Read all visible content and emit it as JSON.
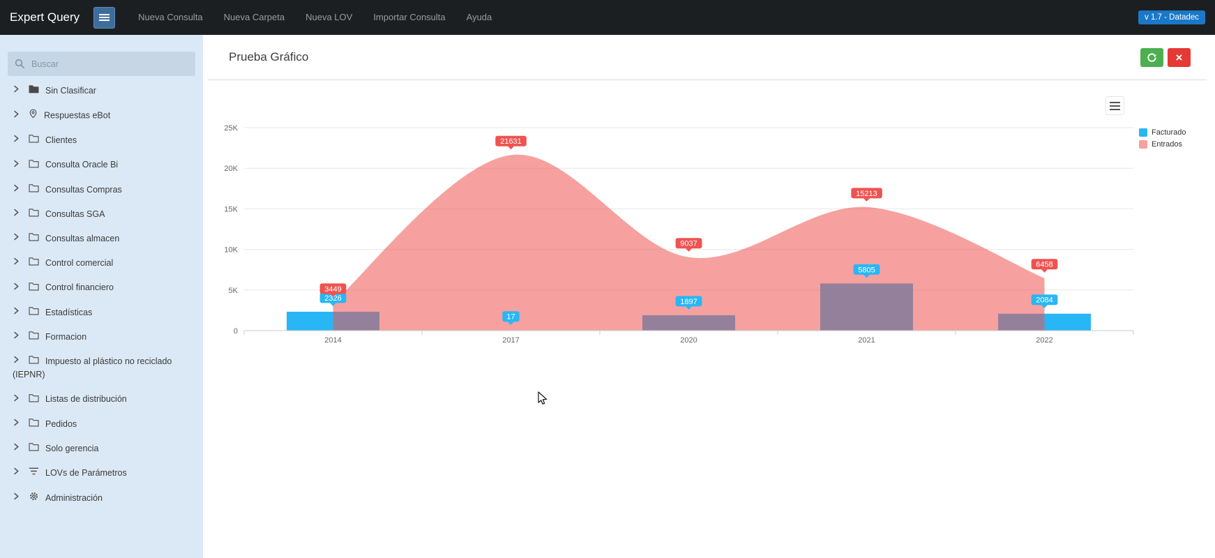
{
  "navbar": {
    "brand": "Expert Query",
    "menu_items": [
      "Nueva Consulta",
      "Nueva Carpeta",
      "Nueva LOV",
      "Importar Consulta",
      "Ayuda"
    ],
    "version_badge": "v 1.7 - Datadec"
  },
  "sidebar": {
    "search_placeholder": "Buscar",
    "items": [
      {
        "label": "Sin Clasificar",
        "icon": "folder-filled"
      },
      {
        "label": "Respuestas eBot",
        "icon": "pin"
      },
      {
        "label": "Clientes",
        "icon": "folder"
      },
      {
        "label": "Consulta Oracle Bi",
        "icon": "folder"
      },
      {
        "label": "Consultas Compras",
        "icon": "folder"
      },
      {
        "label": "Consultas SGA",
        "icon": "folder"
      },
      {
        "label": "Consultas almacen",
        "icon": "folder"
      },
      {
        "label": "Control comercial",
        "icon": "folder"
      },
      {
        "label": "Control financiero",
        "icon": "folder"
      },
      {
        "label": "Estadísticas",
        "icon": "folder"
      },
      {
        "label": "Formacion",
        "icon": "folder"
      },
      {
        "label": "Impuesto al plástico no reciclado (IEPNR)",
        "icon": "folder"
      },
      {
        "label": "Listas de distribución",
        "icon": "folder"
      },
      {
        "label": "Pedidos",
        "icon": "folder"
      },
      {
        "label": "Solo gerencia",
        "icon": "folder"
      },
      {
        "label": "LOVs de Parámetros",
        "icon": "filter"
      },
      {
        "label": "Administración",
        "icon": "gear"
      }
    ]
  },
  "main": {
    "title": "Prueba Gráfico",
    "actions": {
      "close_glyph": "×",
      "refresh_icon": "refresh-icon",
      "close_icon": "close-icon"
    }
  },
  "chart_data": {
    "type": "combo",
    "categories": [
      "2014",
      "2017",
      "2020",
      "2021",
      "2022"
    ],
    "series": [
      {
        "name": "Facturado",
        "type": "column",
        "color": "#29B6F6",
        "fill_opacity": 1,
        "values": [
          2326,
          17,
          1897,
          5805,
          2084
        ]
      },
      {
        "name": "Entrados",
        "type": "areaspline",
        "color": "#EF5350",
        "fill_opacity": 0.55,
        "values": [
          3449,
          21631,
          9037,
          15213,
          6458
        ]
      }
    ],
    "ylim": [
      0,
      25000
    ],
    "yticks": [
      "0",
      "5K",
      "10K",
      "15K",
      "20K",
      "25K"
    ],
    "grid": true,
    "legend_position": "right"
  },
  "colors": {
    "navbar_bg": "#1c1f22",
    "sidebar_bg": "#dbe9f6",
    "badge_blue": "#1a78c9",
    "burger_blue": "#3e6d9c",
    "refresh_green": "#4caf50",
    "close_red": "#e53935",
    "series_blue": "#29B6F6",
    "series_red": "#EF5350"
  }
}
